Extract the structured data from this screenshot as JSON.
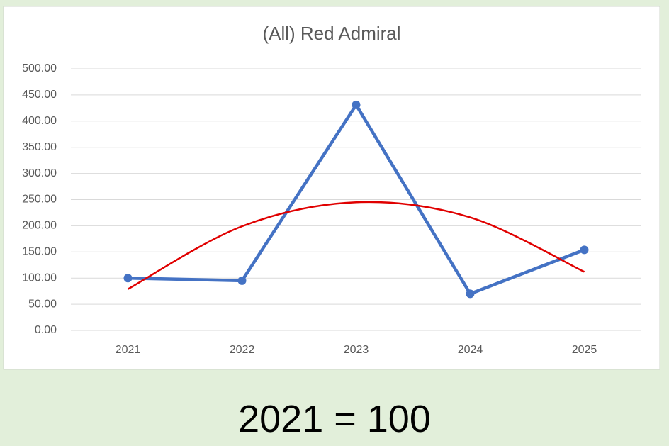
{
  "chart_data": {
    "type": "line",
    "title": "(All) Red Admiral",
    "categories": [
      "2021",
      "2022",
      "2023",
      "2024",
      "2025"
    ],
    "series": [
      {
        "color": "#4472c4",
        "values": [
          100,
          95,
          431,
          70,
          154
        ],
        "markers": true
      },
      {
        "color": "#e00000",
        "values": [
          79,
          199,
          245,
          216,
          112
        ],
        "markers": false,
        "smooth": true
      }
    ],
    "ylim": [
      0,
      500
    ],
    "yticks": [
      {
        "value": 0,
        "label": "0.00"
      },
      {
        "value": 50,
        "label": "50.00"
      },
      {
        "value": 100,
        "label": "100.00"
      },
      {
        "value": 150,
        "label": "150.00"
      },
      {
        "value": 200,
        "label": "200.00"
      },
      {
        "value": 250,
        "label": "250.00"
      },
      {
        "value": 300,
        "label": "300.00"
      },
      {
        "value": 350,
        "label": "350.00"
      },
      {
        "value": 400,
        "label": "400.00"
      },
      {
        "value": 450,
        "label": "450.00"
      },
      {
        "value": 500,
        "label": "500.00"
      }
    ],
    "grid": true
  },
  "caption": "2021 = 100"
}
